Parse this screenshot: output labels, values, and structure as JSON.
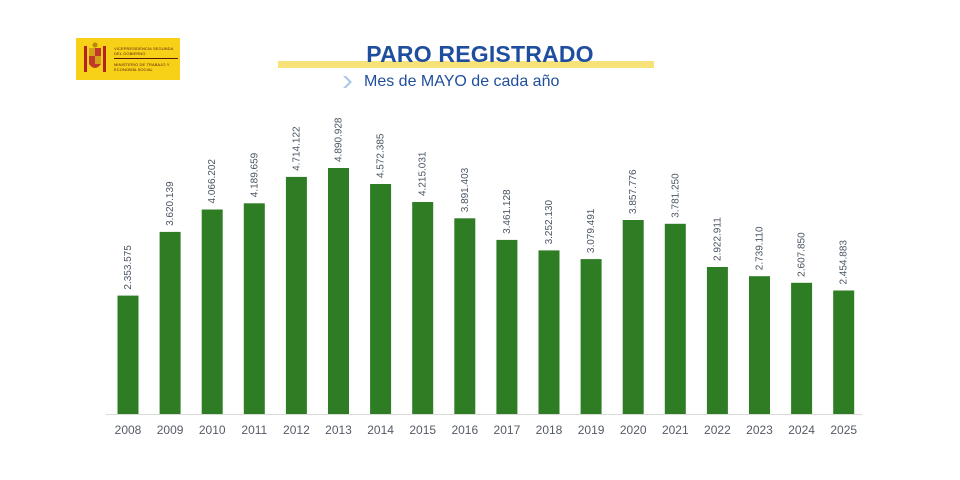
{
  "logo": {
    "line1": "VICEPRESIDENCIA SEGUNDA DEL GOBIERNO",
    "line2": "MINISTERIO DE TRABAJO Y ECONOMÍA SOCIAL",
    "color": "#f7d117"
  },
  "header": {
    "title": "PARO REGISTRADO",
    "subtitle": "Mes de MAYO de cada año",
    "chevron_icon": "chevron-right-icon"
  },
  "chart_data": {
    "type": "bar",
    "title": "PARO REGISTRADO",
    "subtitle": "Mes de MAYO de cada año",
    "categories": [
      "2008",
      "2009",
      "2010",
      "2011",
      "2012",
      "2013",
      "2014",
      "2015",
      "2016",
      "2017",
      "2018",
      "2019",
      "2020",
      "2021",
      "2022",
      "2023",
      "2024",
      "2025"
    ],
    "values": [
      2353575,
      3620139,
      4066202,
      4189659,
      4714122,
      4890928,
      4572385,
      4215031,
      3891403,
      3461128,
      3252130,
      3079491,
      3857776,
      3781250,
      2922911,
      2739110,
      2607850,
      2454883
    ],
    "value_labels": [
      "2.353.575",
      "3.620.139",
      "4.066.202",
      "4.189.659",
      "4.714.122",
      "4.890.928",
      "4.572.385",
      "4.215.031",
      "3.891.403",
      "3.461.128",
      "3.252.130",
      "3.079.491",
      "3.857.776",
      "3.781.250",
      "2.922.911",
      "2.739.110",
      "2.607.850",
      "2.454.883"
    ],
    "xlabel": "",
    "ylabel": "",
    "ylim": [
      0,
      4890928
    ],
    "grid": false,
    "legend": "none",
    "bar_color": "#2e7d24",
    "label_color": "#4a5563"
  }
}
